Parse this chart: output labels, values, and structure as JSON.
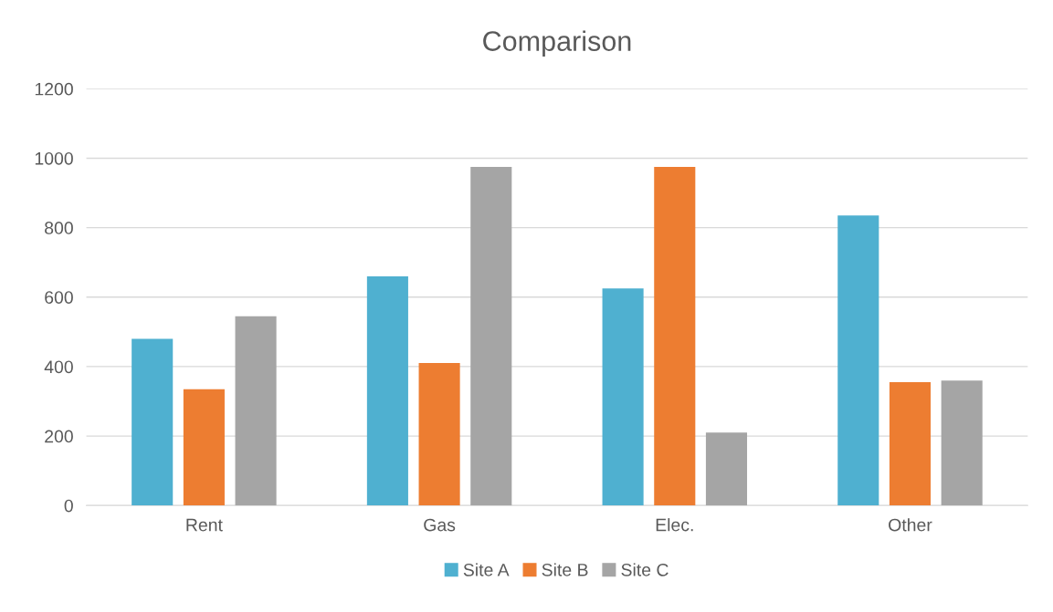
{
  "chart_data": {
    "type": "bar",
    "title": "Comparison",
    "categories": [
      "Rent",
      "Gas",
      "Elec.",
      "Other"
    ],
    "series": [
      {
        "name": "Site A",
        "color": "#4fb0d0",
        "values": [
          480,
          660,
          625,
          835
        ]
      },
      {
        "name": "Site B",
        "color": "#ed7d31",
        "values": [
          335,
          410,
          975,
          355
        ]
      },
      {
        "name": "Site C",
        "color": "#a5a5a5",
        "values": [
          545,
          975,
          210,
          360
        ]
      }
    ],
    "ylim": [
      0,
      1200
    ],
    "yticks": [
      0,
      200,
      400,
      600,
      800,
      1000,
      1200
    ],
    "grid": "y",
    "legend": "bottom"
  }
}
